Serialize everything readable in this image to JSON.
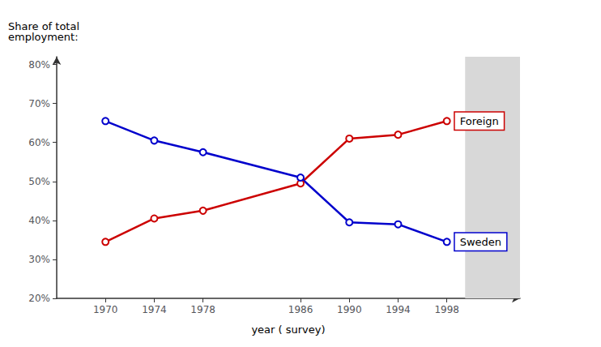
{
  "chart_data": {
    "type": "line",
    "x": [
      1970,
      1974,
      1978,
      1986,
      1990,
      1994,
      1998
    ],
    "series": [
      {
        "name": "Foreign",
        "color": "#cc0000",
        "marker": "circle",
        "values": [
          0.345,
          0.405,
          0.425,
          0.495,
          0.61,
          0.62,
          0.655
        ]
      },
      {
        "name": "Sweden",
        "color": "#0000cc",
        "marker": "circle",
        "values": [
          0.655,
          0.605,
          0.575,
          0.51,
          0.395,
          0.39,
          0.345
        ]
      }
    ],
    "xlabel": "year ( survey)",
    "ylabel": "Share of total\nemployment:",
    "xlim": [
      1966,
      2004
    ],
    "xticks": [
      1970,
      1974,
      1978,
      1986,
      1990,
      1994,
      1998
    ],
    "ylim": [
      0.2,
      0.82
    ],
    "yticks": [
      {
        "value": 0.2,
        "label": "20%"
      },
      {
        "value": 0.3,
        "label": "30%"
      },
      {
        "value": 0.4,
        "label": "40%"
      },
      {
        "value": 0.5,
        "label": "50%"
      },
      {
        "value": 0.6,
        "label": "60%"
      },
      {
        "value": 0.7,
        "label": "70%"
      },
      {
        "value": 0.8,
        "label": "80%"
      }
    ],
    "grid": false,
    "shaded_region": {
      "from": 1999.5,
      "to": 2004,
      "color": "#d8d8d8"
    }
  }
}
